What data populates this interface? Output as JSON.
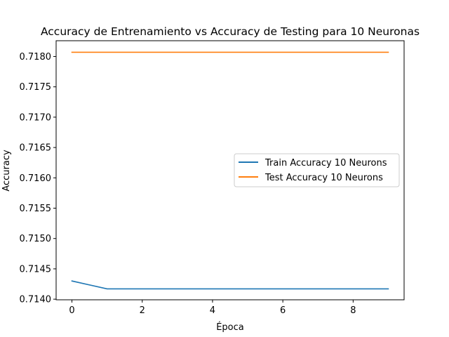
{
  "chart_data": {
    "type": "line",
    "title": "Accuracy de Entrenamiento vs Accuracy de Testing para 10 Neuronas",
    "xlabel": "Época",
    "ylabel": "Accuracy",
    "x": [
      0,
      1,
      2,
      3,
      4,
      5,
      6,
      7,
      8,
      9
    ],
    "xlim": [
      -0.45,
      9.45
    ],
    "ylim": [
      0.71399,
      0.71826
    ],
    "xticks": [
      0,
      2,
      4,
      6,
      8
    ],
    "xtick_labels": [
      "0",
      "2",
      "4",
      "6",
      "8"
    ],
    "yticks": [
      0.714,
      0.7145,
      0.715,
      0.7155,
      0.716,
      0.7165,
      0.717,
      0.7175,
      0.718
    ],
    "ytick_labels": [
      "0.7140",
      "0.7145",
      "0.7150",
      "0.7155",
      "0.7160",
      "0.7165",
      "0.7170",
      "0.7175",
      "0.7180"
    ],
    "grid": false,
    "legend_position": "center-right",
    "series": [
      {
        "name": "Train Accuracy 10 Neurons",
        "color": "#1f77b4",
        "values": [
          0.7143,
          0.71417,
          0.71417,
          0.71417,
          0.71417,
          0.71417,
          0.71417,
          0.71417,
          0.71417,
          0.71417
        ]
      },
      {
        "name": "Test Accuracy 10 Neurons",
        "color": "#ff7f0e",
        "values": [
          0.71807,
          0.71807,
          0.71807,
          0.71807,
          0.71807,
          0.71807,
          0.71807,
          0.71807,
          0.71807,
          0.71807
        ]
      }
    ]
  }
}
